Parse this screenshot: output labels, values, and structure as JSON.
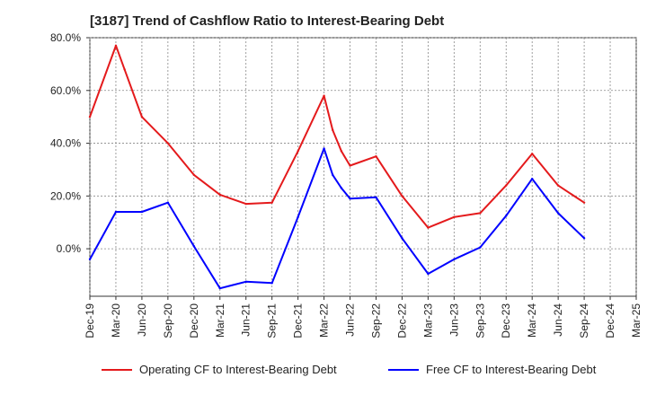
{
  "title": "[3187]  Trend of Cashflow Ratio to Interest-Bearing Debt",
  "chart_data": {
    "type": "line",
    "title": "[3187]  Trend of Cashflow Ratio to Interest-Bearing Debt",
    "xlabel": "",
    "ylabel": "",
    "x_tick_labels": [
      "Dec-19",
      "Mar-20",
      "Jun-20",
      "Sep-20",
      "Dec-20",
      "Mar-21",
      "Jun-21",
      "Sep-21",
      "Dec-21",
      "Mar-22",
      "Jun-22",
      "Sep-22",
      "Dec-22",
      "Mar-23",
      "Jun-23",
      "Sep-23",
      "Dec-23",
      "Mar-24",
      "Jun-24",
      "Sep-24",
      "Dec-24",
      "Mar-25"
    ],
    "y_tick_labels": [
      "80.0%",
      "60.0%",
      "40.0%",
      "20.0%",
      "0.0%"
    ],
    "y_ticks": [
      80,
      60,
      40,
      20,
      0
    ],
    "ylim": [
      -18,
      80
    ],
    "x_range_months": [
      0,
      63
    ],
    "grid": true,
    "legend_position": "bottom",
    "series": [
      {
        "name": "Operating CF to Interest-Bearing Debt",
        "color": "#e41a1c",
        "x": [
          "Dec-19",
          "Mar-20",
          "Apr-20",
          "Jun-20",
          "Sep-20",
          "Dec-20",
          "Mar-21",
          "Jun-21",
          "Sep-21",
          "Dec-21",
          "Mar-22",
          "Apr-22",
          "May-22",
          "Jun-22",
          "Sep-22",
          "Dec-22",
          "Mar-23",
          "Jun-23",
          "Sep-23",
          "Dec-23",
          "Mar-24",
          "Jun-24",
          "Sep-24"
        ],
        "x_month_index": [
          0,
          3,
          4,
          6,
          9,
          12,
          15,
          18,
          21,
          24,
          27,
          28,
          29,
          30,
          33,
          36,
          39,
          42,
          45,
          48,
          51,
          54,
          57
        ],
        "values": [
          50.0,
          77.0,
          68.0,
          50.0,
          40.0,
          28.0,
          20.5,
          17.0,
          17.5,
          37.0,
          58.0,
          45.0,
          37.0,
          31.5,
          35.0,
          20.0,
          8.0,
          12.0,
          13.5,
          24.0,
          36.0,
          24.0,
          17.5
        ]
      },
      {
        "name": "Free CF to Interest-Bearing Debt",
        "color": "#0000ff",
        "x": [
          "Dec-19",
          "Mar-20",
          "Jun-20",
          "Sep-20",
          "Dec-20",
          "Mar-21",
          "Jun-21",
          "Sep-21",
          "Dec-21",
          "Mar-22",
          "Apr-22",
          "May-22",
          "Jun-22",
          "Sep-22",
          "Dec-22",
          "Mar-23",
          "Jun-23",
          "Sep-23",
          "Dec-23",
          "Mar-24",
          "Jun-24",
          "Sep-24"
        ],
        "x_month_index": [
          0,
          3,
          6,
          9,
          12,
          15,
          18,
          21,
          24,
          27,
          28,
          29,
          30,
          33,
          36,
          39,
          42,
          45,
          48,
          51,
          54,
          57
        ],
        "values": [
          -4.0,
          14.0,
          14.0,
          17.5,
          1.0,
          -15.0,
          -12.5,
          -13.0,
          12.0,
          38.0,
          28.0,
          23.0,
          19.0,
          19.5,
          4.0,
          -9.5,
          -4.0,
          0.5,
          12.5,
          26.5,
          13.5,
          4.0
        ]
      }
    ]
  }
}
